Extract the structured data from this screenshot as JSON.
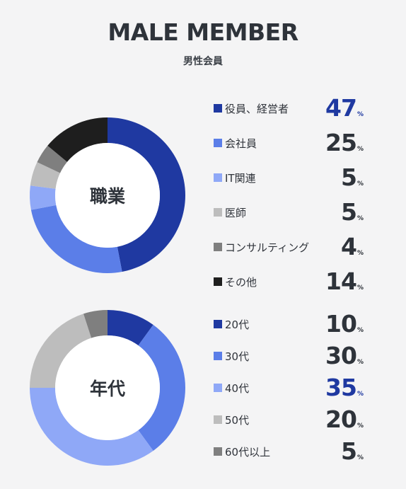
{
  "header": {
    "title": "MALE MEMBER",
    "subtitle": "男性会員"
  },
  "percent_unit": "%",
  "chart_data": [
    {
      "type": "pie",
      "center_label": "職業",
      "categories": [
        "役員、経営者",
        "会社員",
        "IT関連",
        "医師",
        "コンサルティング",
        "その他"
      ],
      "values": [
        47,
        25,
        5,
        5,
        4,
        14
      ],
      "colors": [
        "#1f39a1",
        "#5b7ee8",
        "#8fa8f7",
        "#bdbdbd",
        "#7f7f7f",
        "#1e1e1e"
      ],
      "highlight_index": 0
    },
    {
      "type": "pie",
      "center_label": "年代",
      "categories": [
        "20代",
        "30代",
        "40代",
        "50代",
        "60代以上"
      ],
      "values": [
        10,
        30,
        35,
        20,
        5
      ],
      "colors": [
        "#1f39a1",
        "#5b7ee8",
        "#8fa8f7",
        "#bdbdbd",
        "#7f7f7f"
      ],
      "highlight_index": 2
    }
  ]
}
